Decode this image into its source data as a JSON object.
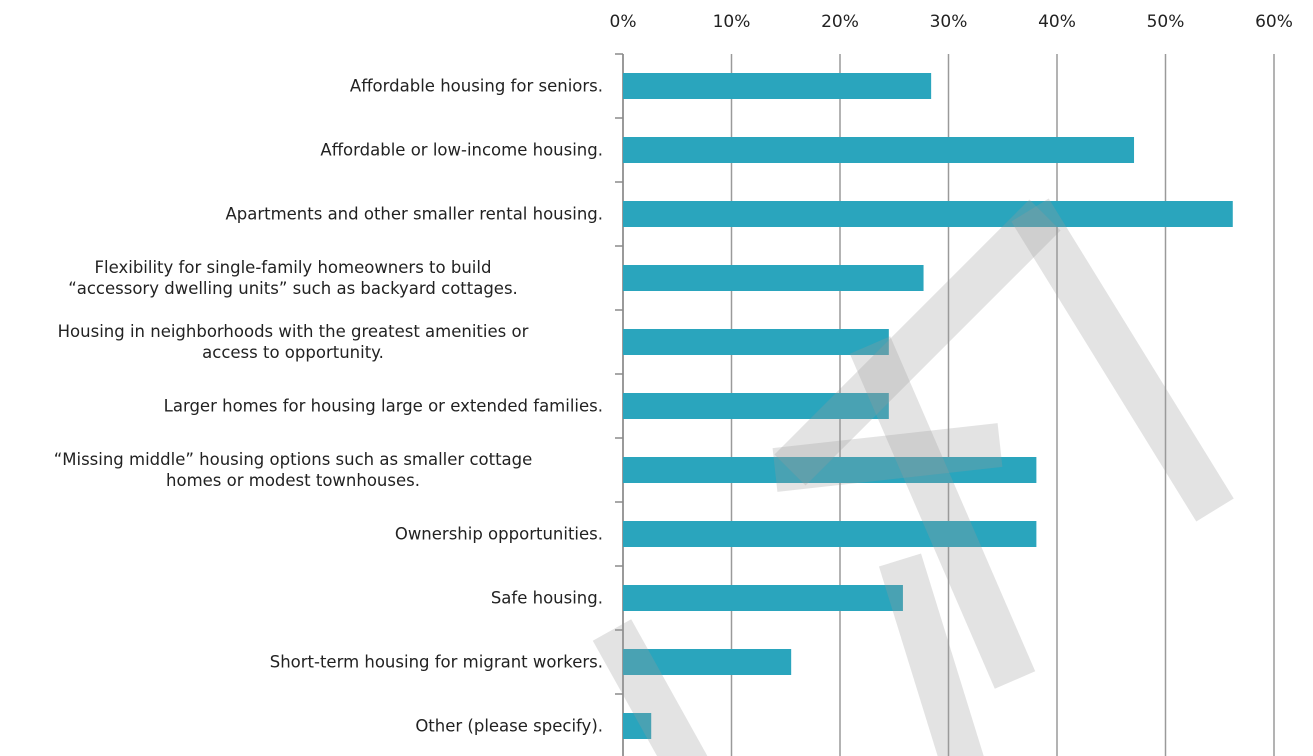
{
  "chart_data": {
    "type": "barh",
    "categories": [
      "Affordable housing for seniors.",
      "Affordable or low-income housing.",
      "Apartments and other smaller rental housing.",
      "Flexibility for single-family homeowners to build\n“accessory dwelling units” such as backyard cottages.",
      "Housing in neighborhoods with the greatest amenities or\naccess to opportunity.",
      "Larger homes for housing large or extended families.",
      "“Missing middle” housing options such as smaller cottage\nhomes or modest townhouses.",
      "Ownership opportunities.",
      "Safe housing.",
      "Short-term housing for migrant workers.",
      "Other (please specify)."
    ],
    "values": [
      28.4,
      47.1,
      56.2,
      27.7,
      24.5,
      24.5,
      38.1,
      38.1,
      25.8,
      15.5,
      2.6
    ],
    "color": "#2aa5bd",
    "xlim": [
      0,
      60
    ],
    "xticks": [
      {
        "value": 0,
        "label": "0%"
      },
      {
        "value": 10,
        "label": "10%"
      },
      {
        "value": 20,
        "label": "20%"
      },
      {
        "value": 30,
        "label": "30%"
      },
      {
        "value": 40,
        "label": "40%"
      },
      {
        "value": 50,
        "label": "50%"
      },
      {
        "value": 60,
        "label": "60%"
      }
    ],
    "grid": true
  }
}
